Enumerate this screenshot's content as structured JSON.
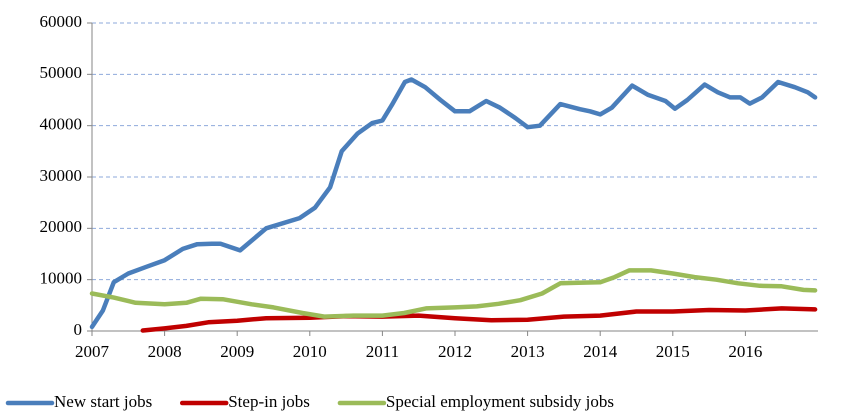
{
  "chart_data": {
    "type": "line",
    "xlim": [
      2007,
      2017
    ],
    "xticks": [
      2007,
      2008,
      2009,
      2010,
      2011,
      2012,
      2013,
      2014,
      2015,
      2016
    ],
    "ylim": [
      0,
      60000
    ],
    "yticks": [
      0,
      10000,
      20000,
      30000,
      40000,
      50000,
      60000
    ],
    "grid": true,
    "legend": "bottom",
    "series": [
      {
        "name": "New start jobs",
        "color": "#4a7ebb",
        "x": [
          2007.0,
          2007.15,
          2007.3,
          2007.5,
          2007.75,
          2008.0,
          2008.25,
          2008.45,
          2008.65,
          2008.77,
          2009.04,
          2009.4,
          2009.86,
          2010.07,
          2010.28,
          2010.44,
          2010.66,
          2010.86,
          2011.0,
          2011.13,
          2011.31,
          2011.4,
          2011.59,
          2011.8,
          2012.0,
          2012.2,
          2012.43,
          2012.62,
          2012.83,
          2013.0,
          2013.17,
          2013.45,
          2013.72,
          2013.86,
          2014.0,
          2014.16,
          2014.44,
          2014.66,
          2014.9,
          2015.03,
          2015.2,
          2015.44,
          2015.62,
          2015.79,
          2015.93,
          2016.06,
          2016.23,
          2016.45,
          2016.68,
          2016.86,
          2016.96
        ],
        "values": [
          800,
          4000,
          9500,
          11200,
          12500,
          13800,
          16000,
          16900,
          17000,
          17000,
          15700,
          20000,
          22000,
          24000,
          28000,
          35000,
          38500,
          40500,
          41000,
          44000,
          48500,
          49000,
          47500,
          45000,
          42800,
          42800,
          44800,
          43500,
          41500,
          39700,
          40000,
          44200,
          43200,
          42800,
          42200,
          43500,
          47800,
          46000,
          44800,
          43300,
          45000,
          48000,
          46500,
          45500,
          45500,
          44300,
          45500,
          48500,
          47500,
          46500,
          45500
        ]
      },
      {
        "name": "Step-in jobs",
        "color": "#c00000",
        "x": [
          2007.7,
          2008.0,
          2008.3,
          2008.6,
          2009.0,
          2009.4,
          2010.0,
          2010.5,
          2011.0,
          2011.5,
          2012.0,
          2012.5,
          2013.0,
          2013.5,
          2014.0,
          2014.5,
          2015.0,
          2015.5,
          2016.0,
          2016.5,
          2016.96
        ],
        "values": [
          100,
          500,
          1000,
          1700,
          2000,
          2500,
          2600,
          2900,
          2800,
          3000,
          2500,
          2100,
          2200,
          2800,
          3000,
          3800,
          3800,
          4100,
          4000,
          4400,
          4200
        ]
      },
      {
        "name": "Special employment subsidy jobs",
        "color": "#9bbb59",
        "x": [
          2007.0,
          2007.3,
          2007.6,
          2008.0,
          2008.3,
          2008.5,
          2008.8,
          2009.2,
          2009.5,
          2009.9,
          2010.2,
          2010.6,
          2011.0,
          2011.3,
          2011.6,
          2012.0,
          2012.3,
          2012.6,
          2012.9,
          2013.2,
          2013.45,
          2013.7,
          2014.0,
          2014.2,
          2014.4,
          2014.7,
          2015.0,
          2015.3,
          2015.6,
          2015.9,
          2016.2,
          2016.5,
          2016.8,
          2016.96
        ],
        "values": [
          7300,
          6500,
          5500,
          5200,
          5500,
          6300,
          6200,
          5200,
          4600,
          3500,
          2800,
          3000,
          3000,
          3500,
          4400,
          4600,
          4800,
          5300,
          6000,
          7300,
          9300,
          9400,
          9500,
          10500,
          11800,
          11800,
          11200,
          10500,
          10000,
          9300,
          8800,
          8700,
          8000,
          7900
        ]
      }
    ]
  }
}
